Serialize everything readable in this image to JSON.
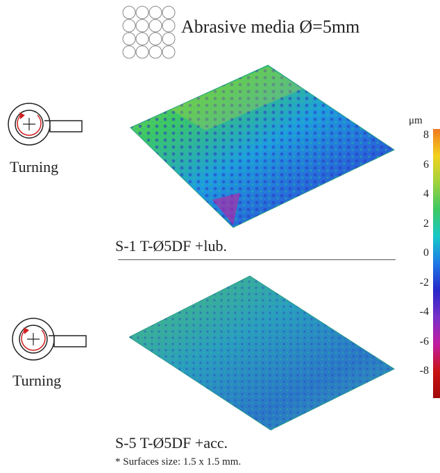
{
  "media": {
    "label": "Abrasive media Ø=5mm",
    "icon": "circle-grid-icon"
  },
  "samples": [
    {
      "id": "s1",
      "process": "Turning",
      "label": "S-1  T-Ø5DF +lub."
    },
    {
      "id": "s5",
      "process": "Turning",
      "label": "S-5  T-Ø5DF +acc."
    }
  ],
  "note": "* Surfaces size: 1.5 x 1.5 mm.",
  "colorscale": {
    "unit": "μm",
    "ticks": [
      "8",
      "6",
      "4",
      "2",
      "0",
      "-2",
      "-4",
      "-6",
      "-8"
    ],
    "colors": [
      "#f07820",
      "#f2d21e",
      "#9ed23c",
      "#3cc864",
      "#18c8c8",
      "#1e78e6",
      "#2828c8",
      "#7830c8",
      "#c01ea0",
      "#c81414",
      "#a00a0a"
    ]
  }
}
